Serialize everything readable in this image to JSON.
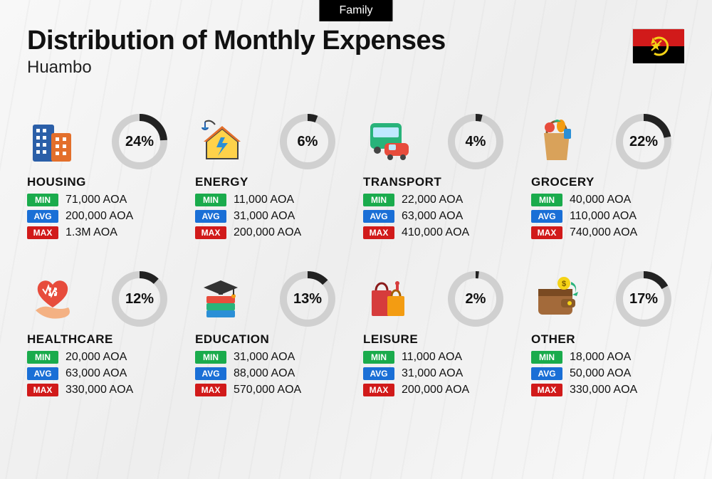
{
  "tag": "Family",
  "title": "Distribution of Monthly Expenses",
  "subtitle": "Huambo",
  "flag": {
    "top_color": "#d11a1a",
    "bottom_color": "#000000",
    "emblem_color": "#f5d316"
  },
  "labels": {
    "min": "MIN",
    "avg": "AVG",
    "max": "MAX"
  },
  "badge_colors": {
    "min": "#1aab4c",
    "avg": "#1a6fd6",
    "max": "#d11a1a"
  },
  "donut": {
    "track_color": "#d0d0d0",
    "fill_color": "#222222",
    "thickness": 10,
    "radius": 34
  },
  "categories": [
    {
      "key": "housing",
      "name": "HOUSING",
      "pct": 24,
      "pct_label": "24%",
      "min": "71,000 AOA",
      "avg": "200,000 AOA",
      "max": "1.3M AOA",
      "icon": "buildings"
    },
    {
      "key": "energy",
      "name": "ENERGY",
      "pct": 6,
      "pct_label": "6%",
      "min": "11,000 AOA",
      "avg": "31,000 AOA",
      "max": "200,000 AOA",
      "icon": "energy-house"
    },
    {
      "key": "transport",
      "name": "TRANSPORT",
      "pct": 4,
      "pct_label": "4%",
      "min": "22,000 AOA",
      "avg": "63,000 AOA",
      "max": "410,000 AOA",
      "icon": "bus-car"
    },
    {
      "key": "grocery",
      "name": "GROCERY",
      "pct": 22,
      "pct_label": "22%",
      "min": "40,000 AOA",
      "avg": "110,000 AOA",
      "max": "740,000 AOA",
      "icon": "grocery-bag"
    },
    {
      "key": "healthcare",
      "name": "HEALTHCARE",
      "pct": 12,
      "pct_label": "12%",
      "min": "20,000 AOA",
      "avg": "63,000 AOA",
      "max": "330,000 AOA",
      "icon": "heart-hand"
    },
    {
      "key": "education",
      "name": "EDUCATION",
      "pct": 13,
      "pct_label": "13%",
      "min": "31,000 AOA",
      "avg": "88,000 AOA",
      "max": "570,000 AOA",
      "icon": "books-cap"
    },
    {
      "key": "leisure",
      "name": "LEISURE",
      "pct": 2,
      "pct_label": "2%",
      "min": "11,000 AOA",
      "avg": "31,000 AOA",
      "max": "200,000 AOA",
      "icon": "shopping-bags"
    },
    {
      "key": "other",
      "name": "OTHER",
      "pct": 17,
      "pct_label": "17%",
      "min": "18,000 AOA",
      "avg": "50,000 AOA",
      "max": "330,000 AOA",
      "icon": "wallet"
    }
  ]
}
